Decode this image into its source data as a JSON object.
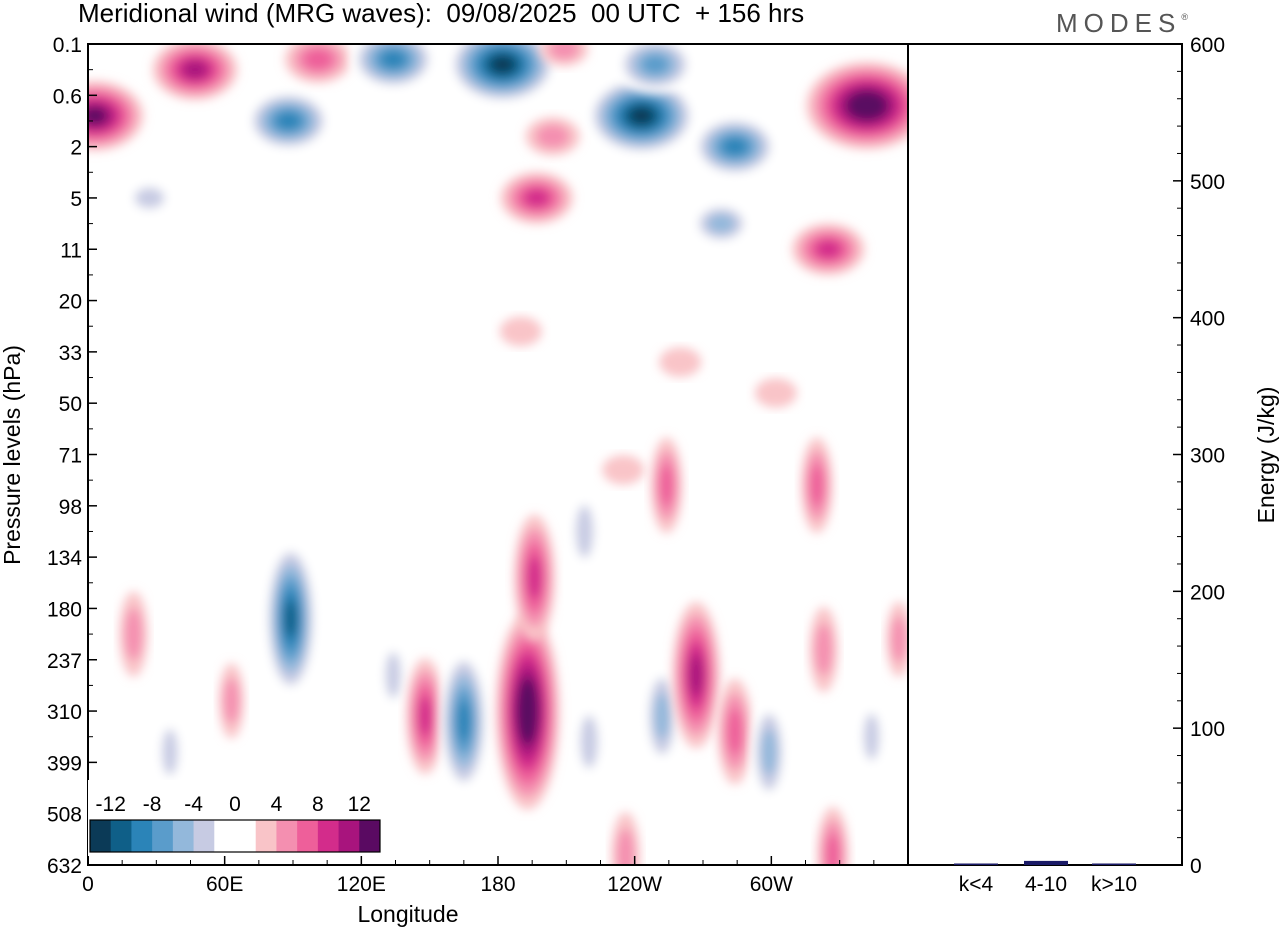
{
  "title": "Meridional wind (MRG waves):  09/08/2025  00 UTC  + 156 hrs",
  "brand": "MODES",
  "brand_mark": "®",
  "chart_data": [
    {
      "type": "heatmap",
      "title": "Meridional wind (MRG waves):  09/08/2025  00 UTC  + 156 hrs",
      "xlabel": "Longitude",
      "ylabel": "Pressure levels (hPa)",
      "x_ticks": [
        "0",
        "60E",
        "120E",
        "180",
        "120W",
        "60W"
      ],
      "y_ticks": [
        "0.1",
        "0.6",
        "2",
        "5",
        "11",
        "20",
        "33",
        "50",
        "71",
        "98",
        "134",
        "180",
        "237",
        "310",
        "399",
        "508",
        "632"
      ],
      "colorbar": {
        "tick_labels": [
          "-12",
          "-8",
          "-4",
          "0",
          "4",
          "8",
          "12"
        ],
        "levels": [
          -14,
          -12,
          -10,
          -8,
          -6,
          -4,
          -2,
          2,
          4,
          6,
          8,
          10,
          12,
          14
        ],
        "colors": [
          "#0b3a57",
          "#0f5f88",
          "#2b84b8",
          "#5a9ccb",
          "#93b8db",
          "#c7cbe3",
          "#ffffff",
          "#ffffff",
          "#f9c4c8",
          "#f48fb0",
          "#ee5f9a",
          "#d32c8b",
          "#a8147d",
          "#5a0a62"
        ],
        "location": "lower-left inset"
      },
      "features": [
        {
          "lon": 47,
          "level_index": 0.5,
          "value": 10
        },
        {
          "lon": 3,
          "level_index": 1.4,
          "value": 12
        },
        {
          "lon": 27,
          "level_index": 3.0,
          "value": -4
        },
        {
          "lon": 88,
          "level_index": 1.5,
          "value": -10
        },
        {
          "lon": 101,
          "level_index": 0.3,
          "value": 7
        },
        {
          "lon": 134,
          "level_index": 0.3,
          "value": -10
        },
        {
          "lon": 182,
          "level_index": 0.4,
          "value": -14
        },
        {
          "lon": 197,
          "level_index": 3.0,
          "value": 8
        },
        {
          "lon": 204,
          "level_index": 1.8,
          "value": 5
        },
        {
          "lon": 209,
          "level_index": 0.1,
          "value": 4
        },
        {
          "lon": 243,
          "level_index": 1.4,
          "value": -14
        },
        {
          "lon": 249,
          "level_index": 0.4,
          "value": -9
        },
        {
          "lon": 284,
          "level_index": 2.0,
          "value": -10
        },
        {
          "lon": 278,
          "level_index": 3.5,
          "value": -6
        },
        {
          "lon": 342,
          "level_index": 1.2,
          "value": 16
        },
        {
          "lon": 325,
          "level_index": 4.0,
          "value": 8
        },
        {
          "lon": 30,
          "level_index": 5.4,
          "value": -3
        },
        {
          "lon": 190,
          "level_index": 5.6,
          "value": 3
        },
        {
          "lon": 260,
          "level_index": 6.2,
          "value": 3
        },
        {
          "lon": 302,
          "level_index": 6.8,
          "value": 3
        },
        {
          "lon": 273,
          "level_index": 8.1,
          "value": -3
        },
        {
          "lon": 235,
          "level_index": 8.3,
          "value": 3
        },
        {
          "lon": 254,
          "level_index": 8.6,
          "value": 6
        },
        {
          "lon": 320,
          "level_index": 8.6,
          "value": 6
        },
        {
          "lon": 218,
          "level_index": 9.5,
          "value": -5
        },
        {
          "lon": 61,
          "level_index": 10.5,
          "value": -3
        },
        {
          "lon": 89,
          "level_index": 11.2,
          "value": -12
        },
        {
          "lon": 20,
          "level_index": 11.5,
          "value": 5
        },
        {
          "lon": 134,
          "level_index": 12.3,
          "value": -4
        },
        {
          "lon": 63,
          "level_index": 12.8,
          "value": 4
        },
        {
          "lon": 148,
          "level_index": 13.1,
          "value": 8
        },
        {
          "lon": 165,
          "level_index": 13.2,
          "value": -11
        },
        {
          "lon": 193,
          "level_index": 13.0,
          "value": 16
        },
        {
          "lon": 196,
          "level_index": 10.4,
          "value": 9
        },
        {
          "lon": 220,
          "level_index": 13.6,
          "value": -5
        },
        {
          "lon": 252,
          "level_index": 13.1,
          "value": -7
        },
        {
          "lon": 267,
          "level_index": 12.3,
          "value": 11
        },
        {
          "lon": 284,
          "level_index": 13.4,
          "value": 7
        },
        {
          "lon": 299,
          "level_index": 13.8,
          "value": -7
        },
        {
          "lon": 323,
          "level_index": 11.8,
          "value": 5
        },
        {
          "lon": 344,
          "level_index": 13.5,
          "value": -4
        },
        {
          "lon": 356,
          "level_index": 11.6,
          "value": 4
        },
        {
          "lon": 36,
          "level_index": 13.8,
          "value": -4
        },
        {
          "lon": 236,
          "level_index": 15.8,
          "value": 5
        },
        {
          "lon": 327,
          "level_index": 15.8,
          "value": 6
        }
      ]
    },
    {
      "type": "bar",
      "categories": [
        "k<4",
        "4-10",
        "k>10"
      ],
      "values": [
        1,
        3,
        1
      ],
      "ylabel": "Energy (J/kg)",
      "ylim": [
        0,
        600
      ],
      "y_ticks": [
        "0",
        "100",
        "200",
        "300",
        "400",
        "500",
        "600"
      ],
      "bar_color": "#1a1a66"
    }
  ]
}
